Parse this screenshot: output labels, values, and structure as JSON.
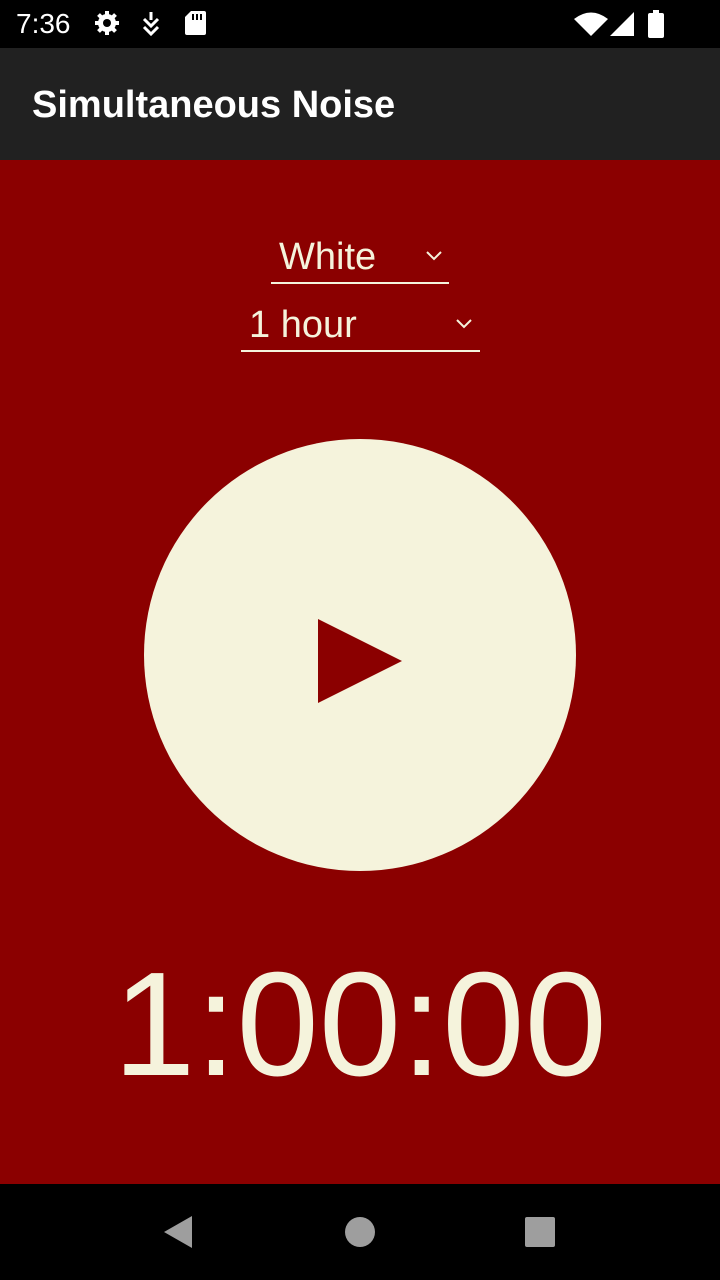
{
  "status_bar": {
    "time": "7:36",
    "icons": [
      "gear-icon",
      "download-icon",
      "sd-card-icon",
      "wifi-icon",
      "signal-icon",
      "battery-icon"
    ]
  },
  "app_bar": {
    "title": "Simultaneous Noise"
  },
  "noise_type": {
    "selected": "White"
  },
  "duration": {
    "selected": "1 hour"
  },
  "player": {
    "icon": "play-icon"
  },
  "timer": {
    "display": "1:00:00"
  },
  "nav_bar": {
    "icons": [
      "back-icon",
      "home-icon",
      "recents-icon"
    ]
  },
  "colors": {
    "background": "#8b0000",
    "foreground": "#f5f3dc",
    "app_bar": "#212121",
    "status_bar": "#000000"
  }
}
